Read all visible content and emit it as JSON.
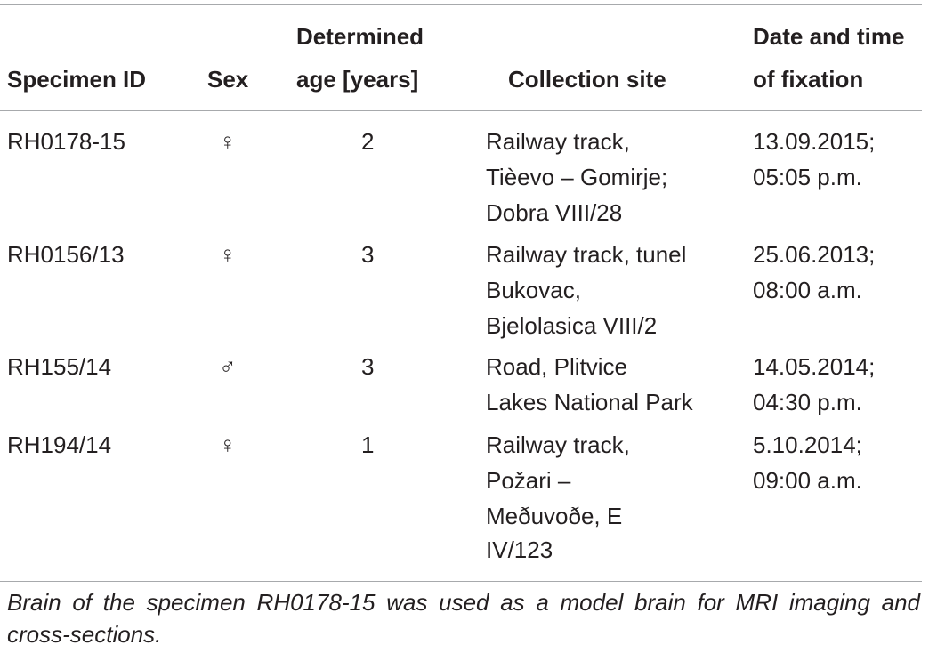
{
  "table": {
    "headers": {
      "specimen_id": "Specimen ID",
      "sex": "Sex",
      "age": [
        "Determined",
        "age [years]"
      ],
      "site": "Collection site",
      "date": [
        "Date and time",
        "of fixation"
      ]
    },
    "rows": [
      {
        "id": "RH0178-15",
        "sex": "♀",
        "age": "2",
        "site": [
          "Railway track,",
          "Tièevo – Gomirje;",
          "Dobra VIII/28"
        ],
        "date": [
          "13.09.2015;",
          "05:05 p.m."
        ]
      },
      {
        "id": "RH0156/13",
        "sex": "♀",
        "age": "3",
        "site": [
          "Railway track, tunel",
          "Bukovac,",
          "Bjelolasica VIII/2"
        ],
        "date": [
          "25.06.2013;",
          "08:00 a.m."
        ]
      },
      {
        "id": "RH155/14",
        "sex": "♂",
        "age": "3",
        "site": [
          "Road, Plitvice",
          "Lakes National Park"
        ],
        "date": [
          "14.05.2014;",
          "04:30 p.m."
        ]
      },
      {
        "id": "RH194/14",
        "sex": "♀",
        "age": "1",
        "site": [
          "Railway track,",
          "Požari –",
          "Meðuvoðe, E",
          "IV/123"
        ],
        "date": [
          "5.10.2014;",
          "09:00 a.m."
        ]
      }
    ],
    "footnote": "Brain of the specimen RH0178-15 was used as a model brain for MRI imaging and cross-sections."
  }
}
